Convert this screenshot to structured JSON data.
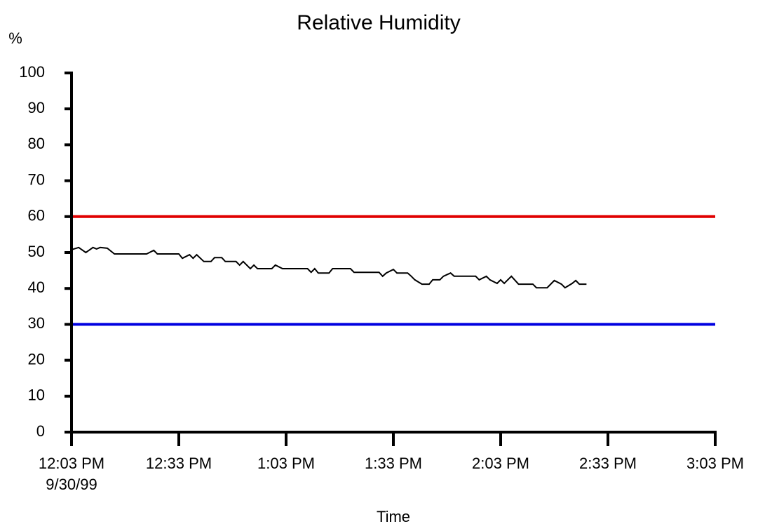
{
  "chart_data": {
    "type": "line",
    "title": "Relative Humidity",
    "title_color": "#1a1aff",
    "y_label": "%",
    "x_label": "Time",
    "date_label": "9/30/99",
    "x": [
      "12:03 PM",
      "12:05 PM",
      "12:07 PM",
      "12:09 PM",
      "12:10 PM",
      "12:11 PM",
      "12:13 PM",
      "12:15 PM",
      "12:24 PM",
      "12:26 PM",
      "12:27 PM",
      "12:33 PM",
      "12:34 PM",
      "12:36 PM",
      "12:37 PM",
      "12:38 PM",
      "12:40 PM",
      "12:42 PM",
      "12:43 PM",
      "12:45 PM",
      "12:46 PM",
      "12:49 PM",
      "12:50 PM",
      "12:51 PM",
      "12:53 PM",
      "12:54 PM",
      "12:55 PM",
      "12:59 PM",
      "1:00 PM",
      "1:02 PM",
      "1:09 PM",
      "1:10 PM",
      "1:11 PM",
      "1:12 PM",
      "1:15 PM",
      "1:16 PM",
      "1:21 PM",
      "1:22 PM",
      "1:29 PM",
      "1:30 PM",
      "1:31 PM",
      "1:33 PM",
      "1:34 PM",
      "1:37 PM",
      "1:38 PM",
      "1:39 PM",
      "1:41 PM",
      "1:43 PM",
      "1:44 PM",
      "1:46 PM",
      "1:47 PM",
      "1:49 PM",
      "1:50 PM",
      "1:56 PM",
      "1:57 PM",
      "1:59 PM",
      "2:00 PM",
      "2:02 PM",
      "2:03 PM",
      "2:04 PM",
      "2:06 PM",
      "2:08 PM",
      "2:12 PM",
      "2:13 PM",
      "2:16 PM",
      "2:18 PM",
      "2:20 PM",
      "2:21 PM",
      "2:23 PM",
      "2:24 PM",
      "2:25 PM",
      "2:27 PM"
    ],
    "series": [
      {
        "name": "Relative Humidity",
        "color": "#000000",
        "values": [
          50.8,
          51.4,
          50,
          51.4,
          51,
          51.4,
          51.2,
          49.6,
          49.6,
          50.6,
          49.6,
          49.6,
          48.4,
          49.4,
          48.4,
          49.4,
          47.5,
          47.5,
          48.6,
          48.6,
          47.5,
          47.5,
          46.5,
          47.5,
          45.5,
          46.5,
          45.5,
          45.5,
          46.5,
          45.5,
          45.5,
          44.5,
          45.5,
          44.3,
          44.3,
          45.5,
          45.5,
          44.5,
          44.5,
          43.4,
          44.3,
          45.3,
          44.3,
          44.3,
          43.4,
          42.4,
          41.2,
          41.2,
          42.4,
          42.4,
          43.4,
          44.3,
          43.4,
          43.4,
          42.4,
          43.4,
          42.4,
          41.4,
          42.4,
          41.4,
          43.4,
          41.2,
          41.2,
          40.2,
          40.2,
          42.2,
          41.2,
          40.2,
          41.4,
          42.2,
          41.2,
          41.2
        ]
      }
    ],
    "thresholds": [
      {
        "value": 60,
        "color": "#e00000"
      },
      {
        "value": 30,
        "color": "#0000e0"
      }
    ],
    "xlim": [
      "12:03 PM",
      "3:03 PM"
    ],
    "xticks": [
      "12:03 PM",
      "12:33 PM",
      "1:03 PM",
      "1:33 PM",
      "2:03 PM",
      "2:33 PM",
      "3:03 PM"
    ],
    "ylim": [
      0,
      100
    ],
    "yticks": [
      0,
      10,
      20,
      30,
      40,
      50,
      60,
      70,
      80,
      90,
      100
    ]
  }
}
